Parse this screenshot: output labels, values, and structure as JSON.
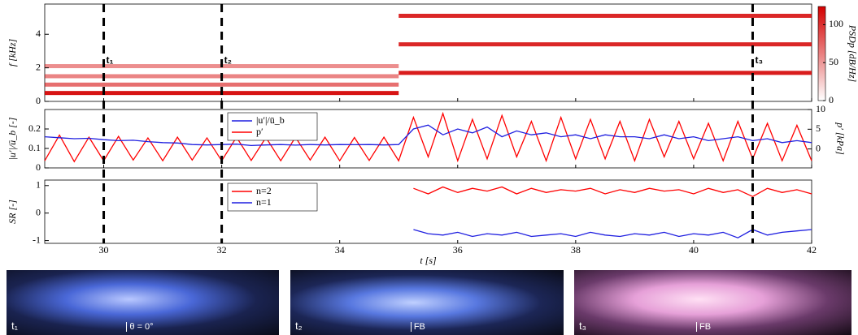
{
  "chart_data": [
    {
      "type": "heatmap",
      "ylabel": "f [kHz]",
      "xlim": [
        29,
        42
      ],
      "xticks": [
        30,
        32,
        34,
        36,
        38,
        40,
        42
      ],
      "ylim": [
        0,
        5.8
      ],
      "yticks": [
        0,
        2,
        4
      ],
      "colorbar_label": "PSDp [dB/Hz]",
      "clim": [
        0,
        124
      ],
      "cticks": [
        0,
        50,
        100
      ],
      "color": "#d40000",
      "bands": [
        {
          "f": 0.5,
          "t0": 29,
          "t1": 35,
          "level": 115
        },
        {
          "f": 1.0,
          "t0": 29,
          "t1": 35,
          "level": 70
        },
        {
          "f": 1.5,
          "t0": 29,
          "t1": 35,
          "level": 60
        },
        {
          "f": 2.1,
          "t0": 29,
          "t1": 35,
          "level": 55
        },
        {
          "f": 1.7,
          "t0": 35,
          "t1": 42,
          "level": 110
        },
        {
          "f": 3.4,
          "t0": 35,
          "t1": 42,
          "level": 105
        },
        {
          "f": 5.1,
          "t0": 35,
          "t1": 42,
          "level": 105
        }
      ],
      "annotations": [
        {
          "t": 30,
          "label": "t₁"
        },
        {
          "t": 32,
          "label": "t₂"
        },
        {
          "t": 41,
          "label": "t₃"
        }
      ]
    },
    {
      "type": "line",
      "ylabel": "|u′|/ū_b [-]",
      "y2label": "p′ [kPa]",
      "xlim": [
        29,
        42
      ],
      "xticks": [
        30,
        32,
        34,
        36,
        38,
        40,
        42
      ],
      "ylim": [
        0,
        0.3
      ],
      "yticks": [
        0,
        0.1,
        0.2
      ],
      "y2lim": [
        -4.8,
        10
      ],
      "y2ticks": [
        0,
        5,
        10
      ],
      "x": [
        29,
        29.25,
        29.5,
        29.75,
        30,
        30.25,
        30.5,
        30.75,
        31,
        31.25,
        31.5,
        31.75,
        32,
        32.25,
        32.5,
        32.75,
        33,
        33.25,
        33.5,
        33.75,
        34,
        34.25,
        34.5,
        34.75,
        35,
        35.25,
        35.5,
        35.75,
        36,
        36.25,
        36.5,
        36.75,
        37,
        37.25,
        37.5,
        37.75,
        38,
        38.25,
        38.5,
        38.75,
        39,
        39.25,
        39.5,
        39.75,
        40,
        40.25,
        40.5,
        40.75,
        41,
        41.25,
        41.5,
        41.75,
        42
      ],
      "series": [
        {
          "name": "p′",
          "color": "#ff0000",
          "axis": "y2",
          "values": [
            -3,
            3.5,
            -3.2,
            3,
            -3,
            3.2,
            -2.8,
            2.8,
            -3,
            3,
            -2.8,
            2.8,
            -3,
            3,
            -2.9,
            2.9,
            -3,
            3,
            -2.8,
            3,
            -3,
            2.9,
            -2.9,
            3,
            -3,
            8,
            -2,
            9,
            -3,
            7.5,
            -2.5,
            8.5,
            -2,
            7,
            -3,
            8,
            -2.5,
            7.5,
            -2.5,
            7,
            -3,
            7.5,
            -2,
            7,
            -2.5,
            6.5,
            -3,
            7,
            -2.5,
            6.5,
            -3,
            6,
            -3
          ]
        },
        {
          "name": "|u′|/ū_b",
          "color": "#1f1fe0",
          "values": [
            0.16,
            0.155,
            0.15,
            0.152,
            0.145,
            0.14,
            0.142,
            0.135,
            0.13,
            0.128,
            0.12,
            0.118,
            0.12,
            0.122,
            0.115,
            0.118,
            0.12,
            0.117,
            0.12,
            0.118,
            0.12,
            0.119,
            0.12,
            0.118,
            0.12,
            0.2,
            0.22,
            0.17,
            0.2,
            0.18,
            0.21,
            0.16,
            0.19,
            0.17,
            0.18,
            0.16,
            0.17,
            0.15,
            0.17,
            0.16,
            0.16,
            0.15,
            0.17,
            0.15,
            0.16,
            0.14,
            0.15,
            0.16,
            0.14,
            0.15,
            0.13,
            0.14,
            0.13
          ]
        }
      ]
    },
    {
      "type": "line",
      "ylabel": "SR [-]",
      "xlabel": "t [s]",
      "xlim": [
        29,
        42
      ],
      "xticks": [
        30,
        32,
        34,
        36,
        38,
        40,
        42
      ],
      "ylim": [
        -1.1,
        1.2
      ],
      "yticks": [
        -1,
        0,
        1
      ],
      "x": [
        29,
        29.25,
        29.5,
        29.75,
        30,
        30.25,
        30.5,
        30.75,
        31,
        31.25,
        31.5,
        31.75,
        32,
        32.25,
        32.5,
        32.75,
        33,
        33.25,
        33.5,
        33.75,
        34,
        34.25,
        34.5,
        34.75,
        35,
        35.25,
        35.5,
        35.75,
        36,
        36.25,
        36.5,
        36.75,
        37,
        37.25,
        37.5,
        37.75,
        38,
        38.25,
        38.5,
        38.75,
        39,
        39.25,
        39.5,
        39.75,
        40,
        40.25,
        40.5,
        40.75,
        41,
        41.25,
        41.5,
        41.75,
        42
      ],
      "series": [
        {
          "name": "n=1",
          "color": "#1f1fe0",
          "values": [
            null,
            null,
            null,
            null,
            null,
            null,
            null,
            null,
            null,
            null,
            null,
            null,
            null,
            null,
            null,
            null,
            null,
            null,
            null,
            null,
            null,
            null,
            null,
            null,
            null,
            -0.6,
            -0.75,
            -0.8,
            -0.7,
            -0.85,
            -0.75,
            -0.8,
            -0.7,
            -0.85,
            -0.8,
            -0.75,
            -0.85,
            -0.7,
            -0.8,
            -0.85,
            -0.75,
            -0.8,
            -0.7,
            -0.85,
            -0.75,
            -0.8,
            -0.7,
            -0.9,
            -0.6,
            -0.8,
            -0.7,
            -0.65,
            -0.6
          ]
        },
        {
          "name": "n=2",
          "color": "#ff0000",
          "values": [
            null,
            null,
            null,
            null,
            null,
            null,
            null,
            null,
            null,
            null,
            null,
            null,
            null,
            null,
            null,
            null,
            null,
            null,
            null,
            null,
            null,
            null,
            null,
            null,
            null,
            0.9,
            0.7,
            0.95,
            0.75,
            0.9,
            0.8,
            0.95,
            0.7,
            0.9,
            0.75,
            0.85,
            0.8,
            0.9,
            0.7,
            0.85,
            0.75,
            0.9,
            0.8,
            0.85,
            0.7,
            0.9,
            0.75,
            0.85,
            0.6,
            0.9,
            0.75,
            0.85,
            0.7
          ]
        }
      ]
    }
  ],
  "photos": [
    {
      "label": "t₁",
      "note": "θ = 0°"
    },
    {
      "label": "t₂",
      "note": "FB"
    },
    {
      "label": "t₃",
      "note": "FB"
    }
  ]
}
